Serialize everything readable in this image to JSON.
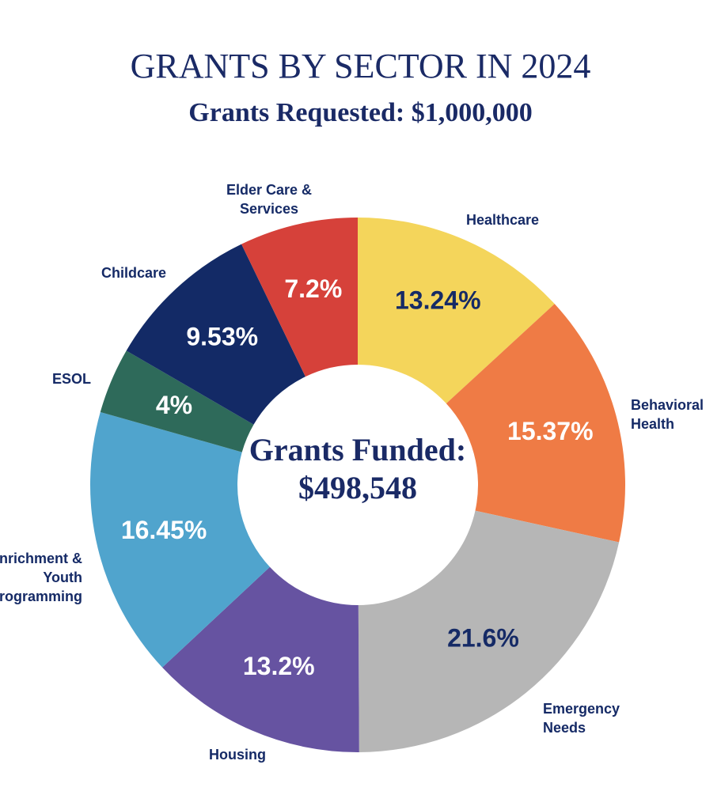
{
  "chart_data": {
    "type": "donut",
    "title": "GRANTS BY SECTOR IN 2024",
    "subtitle": "Grants Requested: $1,000,000",
    "center_label": "Grants Funded: $498,548",
    "categories": [
      "Healthcare",
      "Behavioral Health",
      "Emergency Needs",
      "Housing",
      "Enrichment & Youth Programming",
      "ESOL",
      "Childcare",
      "Elder Care & Services"
    ],
    "values": [
      13.24,
      15.37,
      21.6,
      13.2,
      16.45,
      4,
      9.53,
      7.2
    ],
    "value_labels": [
      "13.24%",
      "15.37%",
      "21.6%",
      "13.2%",
      "16.45%",
      "4%",
      "9.53%",
      "7.2%"
    ],
    "colors": [
      "#f4d55b",
      "#ef7b45",
      "#b6b6b6",
      "#6653a1",
      "#50a4cd",
      "#2e6a5a",
      "#132a66",
      "#d6413a"
    ]
  }
}
